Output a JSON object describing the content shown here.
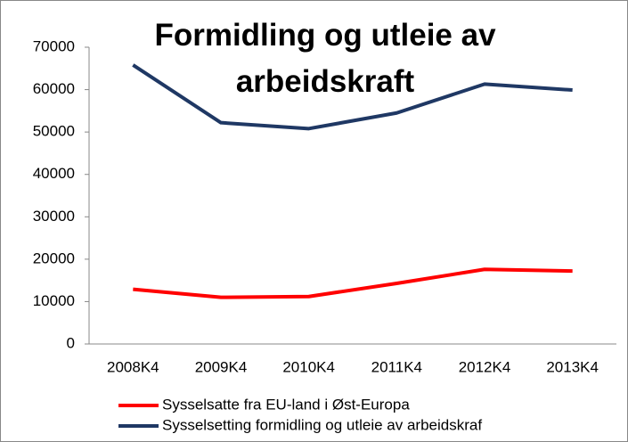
{
  "chart_data": {
    "type": "line",
    "title": "Formidling og utleie av arbeidskraft",
    "categories": [
      "2008K4",
      "2009K4",
      "2010K4",
      "2011K4",
      "2012K4",
      "2013K4"
    ],
    "series": [
      {
        "name": "Sysselsatte fra EU-land i Øst-Europa",
        "color": "#ff0000",
        "values": [
          12900,
          11000,
          11200,
          14300,
          17600,
          17200
        ]
      },
      {
        "name": "Sysselsetting formidling og utleie av arbeidskraf",
        "color": "#1f3864",
        "values": [
          65800,
          52200,
          50800,
          54500,
          61300,
          59900
        ]
      }
    ],
    "ylim": [
      0,
      70000
    ],
    "yticks": [
      0,
      10000,
      20000,
      30000,
      40000,
      50000,
      60000,
      70000
    ],
    "grid": false,
    "legend": "bottom"
  }
}
